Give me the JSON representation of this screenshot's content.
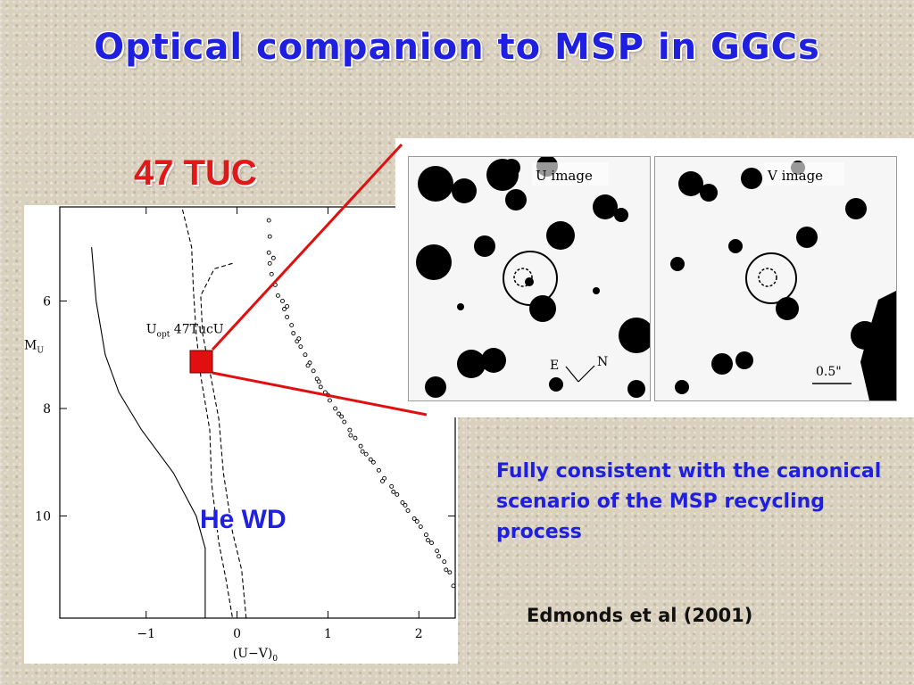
{
  "slide": {
    "title": "Optical companion to MSP in  GGCs",
    "cluster_label": "47 TUC",
    "wd_label": "He WD",
    "summary": "Fully consistent with the canonical scenario of the MSP recycling process",
    "citation": "Edmonds et al (2001)"
  },
  "images": {
    "u_label": "U image",
    "v_label": "V image",
    "compass_e": "E",
    "compass_n": "N",
    "scale_label": "0.5\""
  },
  "chart_data": {
    "type": "scatter",
    "title": "",
    "xlabel": "(U−V)",
    "xlabel_sub": "0",
    "ylabel": "M",
    "ylabel_sub": "U",
    "xlim": [
      -1.95,
      2.4
    ],
    "ylim": [
      11.9,
      4.25
    ],
    "y_inverted": true,
    "xticks": [
      -1,
      0,
      1,
      2
    ],
    "xtick_labels": [
      "−1",
      "0",
      "1",
      "2"
    ],
    "yticks": [
      6,
      8,
      10
    ],
    "ytick_labels": [
      "6",
      "8",
      "10"
    ],
    "point_label": "47TucU",
    "point_label_prefix": "U",
    "point_label_sub": "opt",
    "companion": {
      "x": -0.38,
      "y": 7.0
    },
    "series": [
      {
        "style": "solid",
        "points": [
          [
            -1.6,
            5.0
          ],
          [
            -1.55,
            6.0
          ],
          [
            -1.45,
            7.0
          ],
          [
            -1.3,
            7.7
          ],
          [
            -1.05,
            8.4
          ],
          [
            -0.7,
            9.2
          ],
          [
            -0.45,
            10.0
          ],
          [
            -0.35,
            10.6
          ],
          [
            -0.35,
            11.9
          ]
        ]
      },
      {
        "style": "dashed",
        "points": [
          [
            -0.6,
            4.3
          ],
          [
            -0.5,
            5.0
          ],
          [
            -0.48,
            5.8
          ],
          [
            -0.45,
            6.6
          ],
          [
            -0.4,
            7.4
          ],
          [
            -0.3,
            8.4
          ],
          [
            -0.28,
            9.4
          ],
          [
            -0.2,
            10.5
          ],
          [
            -0.12,
            11.2
          ],
          [
            -0.05,
            11.9
          ]
        ]
      },
      {
        "style": "dashed",
        "points": [
          [
            -0.05,
            5.3
          ],
          [
            -0.25,
            5.4
          ],
          [
            -0.4,
            5.9
          ],
          [
            -0.38,
            6.6
          ],
          [
            -0.3,
            7.3
          ],
          [
            -0.2,
            8.2
          ],
          [
            -0.15,
            9.2
          ],
          [
            -0.05,
            10.3
          ],
          [
            0.05,
            11.0
          ],
          [
            0.1,
            11.9
          ]
        ]
      }
    ],
    "stars": [
      [
        0.35,
        4.5
      ],
      [
        0.36,
        4.8
      ],
      [
        0.35,
        5.1
      ],
      [
        0.36,
        5.3
      ],
      [
        0.38,
        5.5
      ],
      [
        0.42,
        5.7
      ],
      [
        0.45,
        5.9
      ],
      [
        0.5,
        6.0
      ],
      [
        0.52,
        6.15
      ],
      [
        0.55,
        6.3
      ],
      [
        0.6,
        6.45
      ],
      [
        0.62,
        6.6
      ],
      [
        0.66,
        6.75
      ],
      [
        0.7,
        6.85
      ],
      [
        0.75,
        7.0
      ],
      [
        0.8,
        7.15
      ],
      [
        0.84,
        7.3
      ],
      [
        0.88,
        7.45
      ],
      [
        0.92,
        7.6
      ],
      [
        0.97,
        7.7
      ],
      [
        1.02,
        7.85
      ],
      [
        1.08,
        8.0
      ],
      [
        1.12,
        8.1
      ],
      [
        1.18,
        8.25
      ],
      [
        1.24,
        8.4
      ],
      [
        1.3,
        8.55
      ],
      [
        1.36,
        8.7
      ],
      [
        1.42,
        8.85
      ],
      [
        1.5,
        9.0
      ],
      [
        1.56,
        9.15
      ],
      [
        1.62,
        9.3
      ],
      [
        1.7,
        9.45
      ],
      [
        1.76,
        9.6
      ],
      [
        1.82,
        9.75
      ],
      [
        1.88,
        9.9
      ],
      [
        1.95,
        10.05
      ],
      [
        2.02,
        10.2
      ],
      [
        2.08,
        10.35
      ],
      [
        2.14,
        10.5
      ],
      [
        2.2,
        10.65
      ],
      [
        2.28,
        10.85
      ],
      [
        2.34,
        11.05
      ],
      [
        2.38,
        11.3
      ],
      [
        0.4,
        5.2
      ],
      [
        0.55,
        6.1
      ],
      [
        0.78,
        7.2
      ],
      [
        1.0,
        7.75
      ],
      [
        1.25,
        8.5
      ],
      [
        1.47,
        8.95
      ],
      [
        1.72,
        9.55
      ],
      [
        1.98,
        10.1
      ],
      [
        2.22,
        10.75
      ],
      [
        0.68,
        6.7
      ],
      [
        0.9,
        7.5
      ],
      [
        1.15,
        8.15
      ],
      [
        1.38,
        8.8
      ],
      [
        1.6,
        9.35
      ],
      [
        1.85,
        9.8
      ],
      [
        2.1,
        10.45
      ],
      [
        2.3,
        11.0
      ]
    ]
  }
}
